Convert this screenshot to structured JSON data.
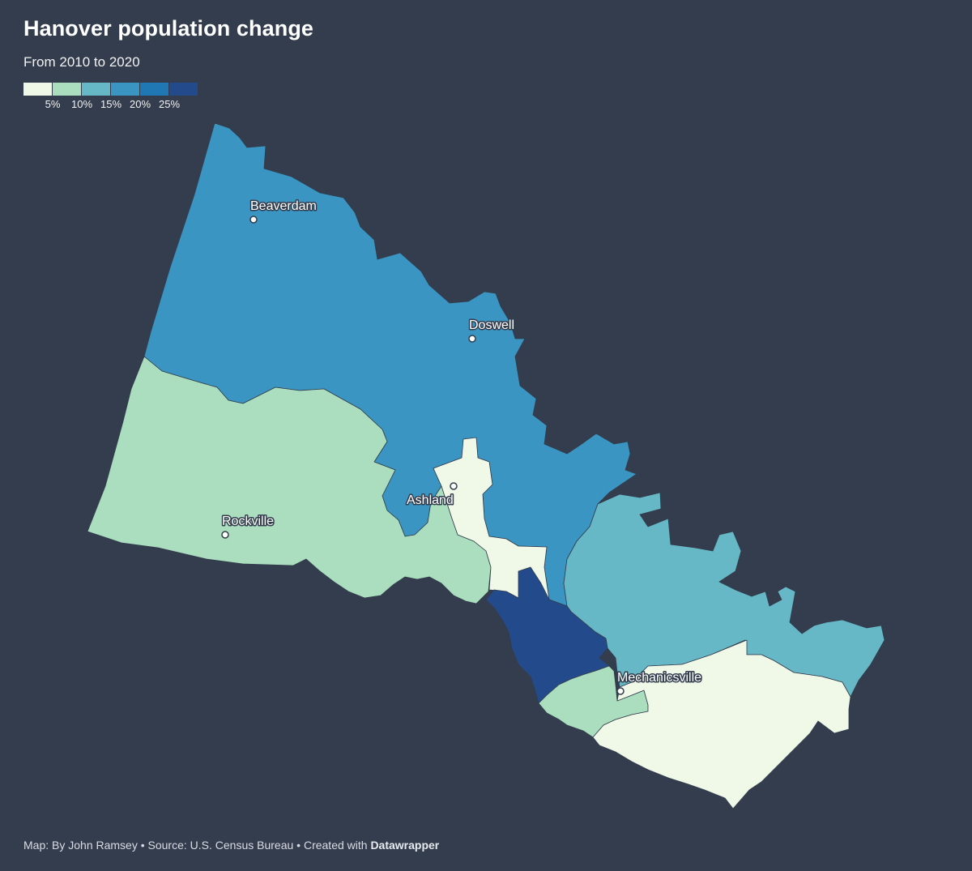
{
  "header": {
    "title": "Hanover population change",
    "subtitle": "From 2010 to 2020"
  },
  "legend": {
    "colors": [
      "#f0f8e8",
      "#aadebe",
      "#67b8c6",
      "#3a95c3",
      "#1f77b4",
      "#234b8c"
    ],
    "ticks": [
      "5%",
      "10%",
      "15%",
      "20%",
      "25%"
    ]
  },
  "map": {
    "regions": [
      {
        "id": "north",
        "color": "#3a95c3"
      },
      {
        "id": "west",
        "color": "#aadebe"
      },
      {
        "id": "ashland-core",
        "color": "#f0f8e8"
      },
      {
        "id": "east",
        "color": "#67b8c6"
      },
      {
        "id": "central-south",
        "color": "#234b8c"
      },
      {
        "id": "southwest-strip",
        "color": "#aadebe"
      },
      {
        "id": "southeast",
        "color": "#f0f8e8"
      }
    ],
    "cities": [
      {
        "name": "Beaverdam"
      },
      {
        "name": "Doswell"
      },
      {
        "name": "Ashland"
      },
      {
        "name": "Rockville"
      },
      {
        "name": "Mechanicsville"
      }
    ]
  },
  "footer": {
    "credit": "Map: By John Ramsey • Source: U.S. Census Bureau • Created with ",
    "tool": "Datawrapper"
  }
}
